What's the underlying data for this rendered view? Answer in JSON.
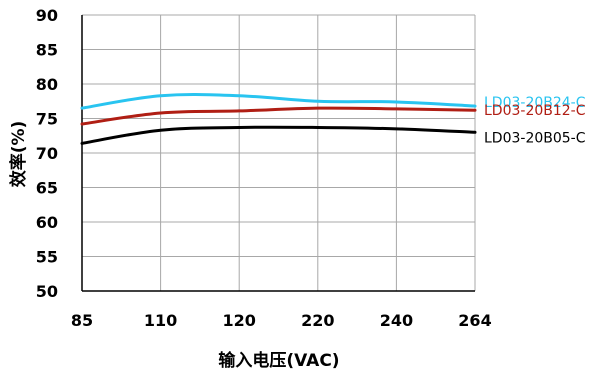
{
  "chart_data": {
    "type": "line",
    "categories": [
      "85",
      "110",
      "120",
      "220",
      "240",
      "264"
    ],
    "ylabel": "效率(%)",
    "xlabel": "输入电压(VAC)",
    "ylim": [
      50,
      90
    ],
    "yticks": [
      50,
      55,
      60,
      65,
      70,
      75,
      80,
      85,
      90
    ],
    "grid": true,
    "series": [
      {
        "name": "LD03-20B24-C",
        "color": "#29c4f0",
        "values": [
          76.5,
          78.3,
          78.3,
          77.5,
          77.4,
          76.8
        ]
      },
      {
        "name": "LD03-20B12-C",
        "color": "#b01e14",
        "values": [
          74.2,
          75.8,
          76.1,
          76.5,
          76.4,
          76.2
        ]
      },
      {
        "name": "LD03-20B05-C",
        "color": "#000000",
        "values": [
          71.4,
          73.3,
          73.7,
          73.7,
          73.5,
          73.0
        ]
      }
    ]
  }
}
